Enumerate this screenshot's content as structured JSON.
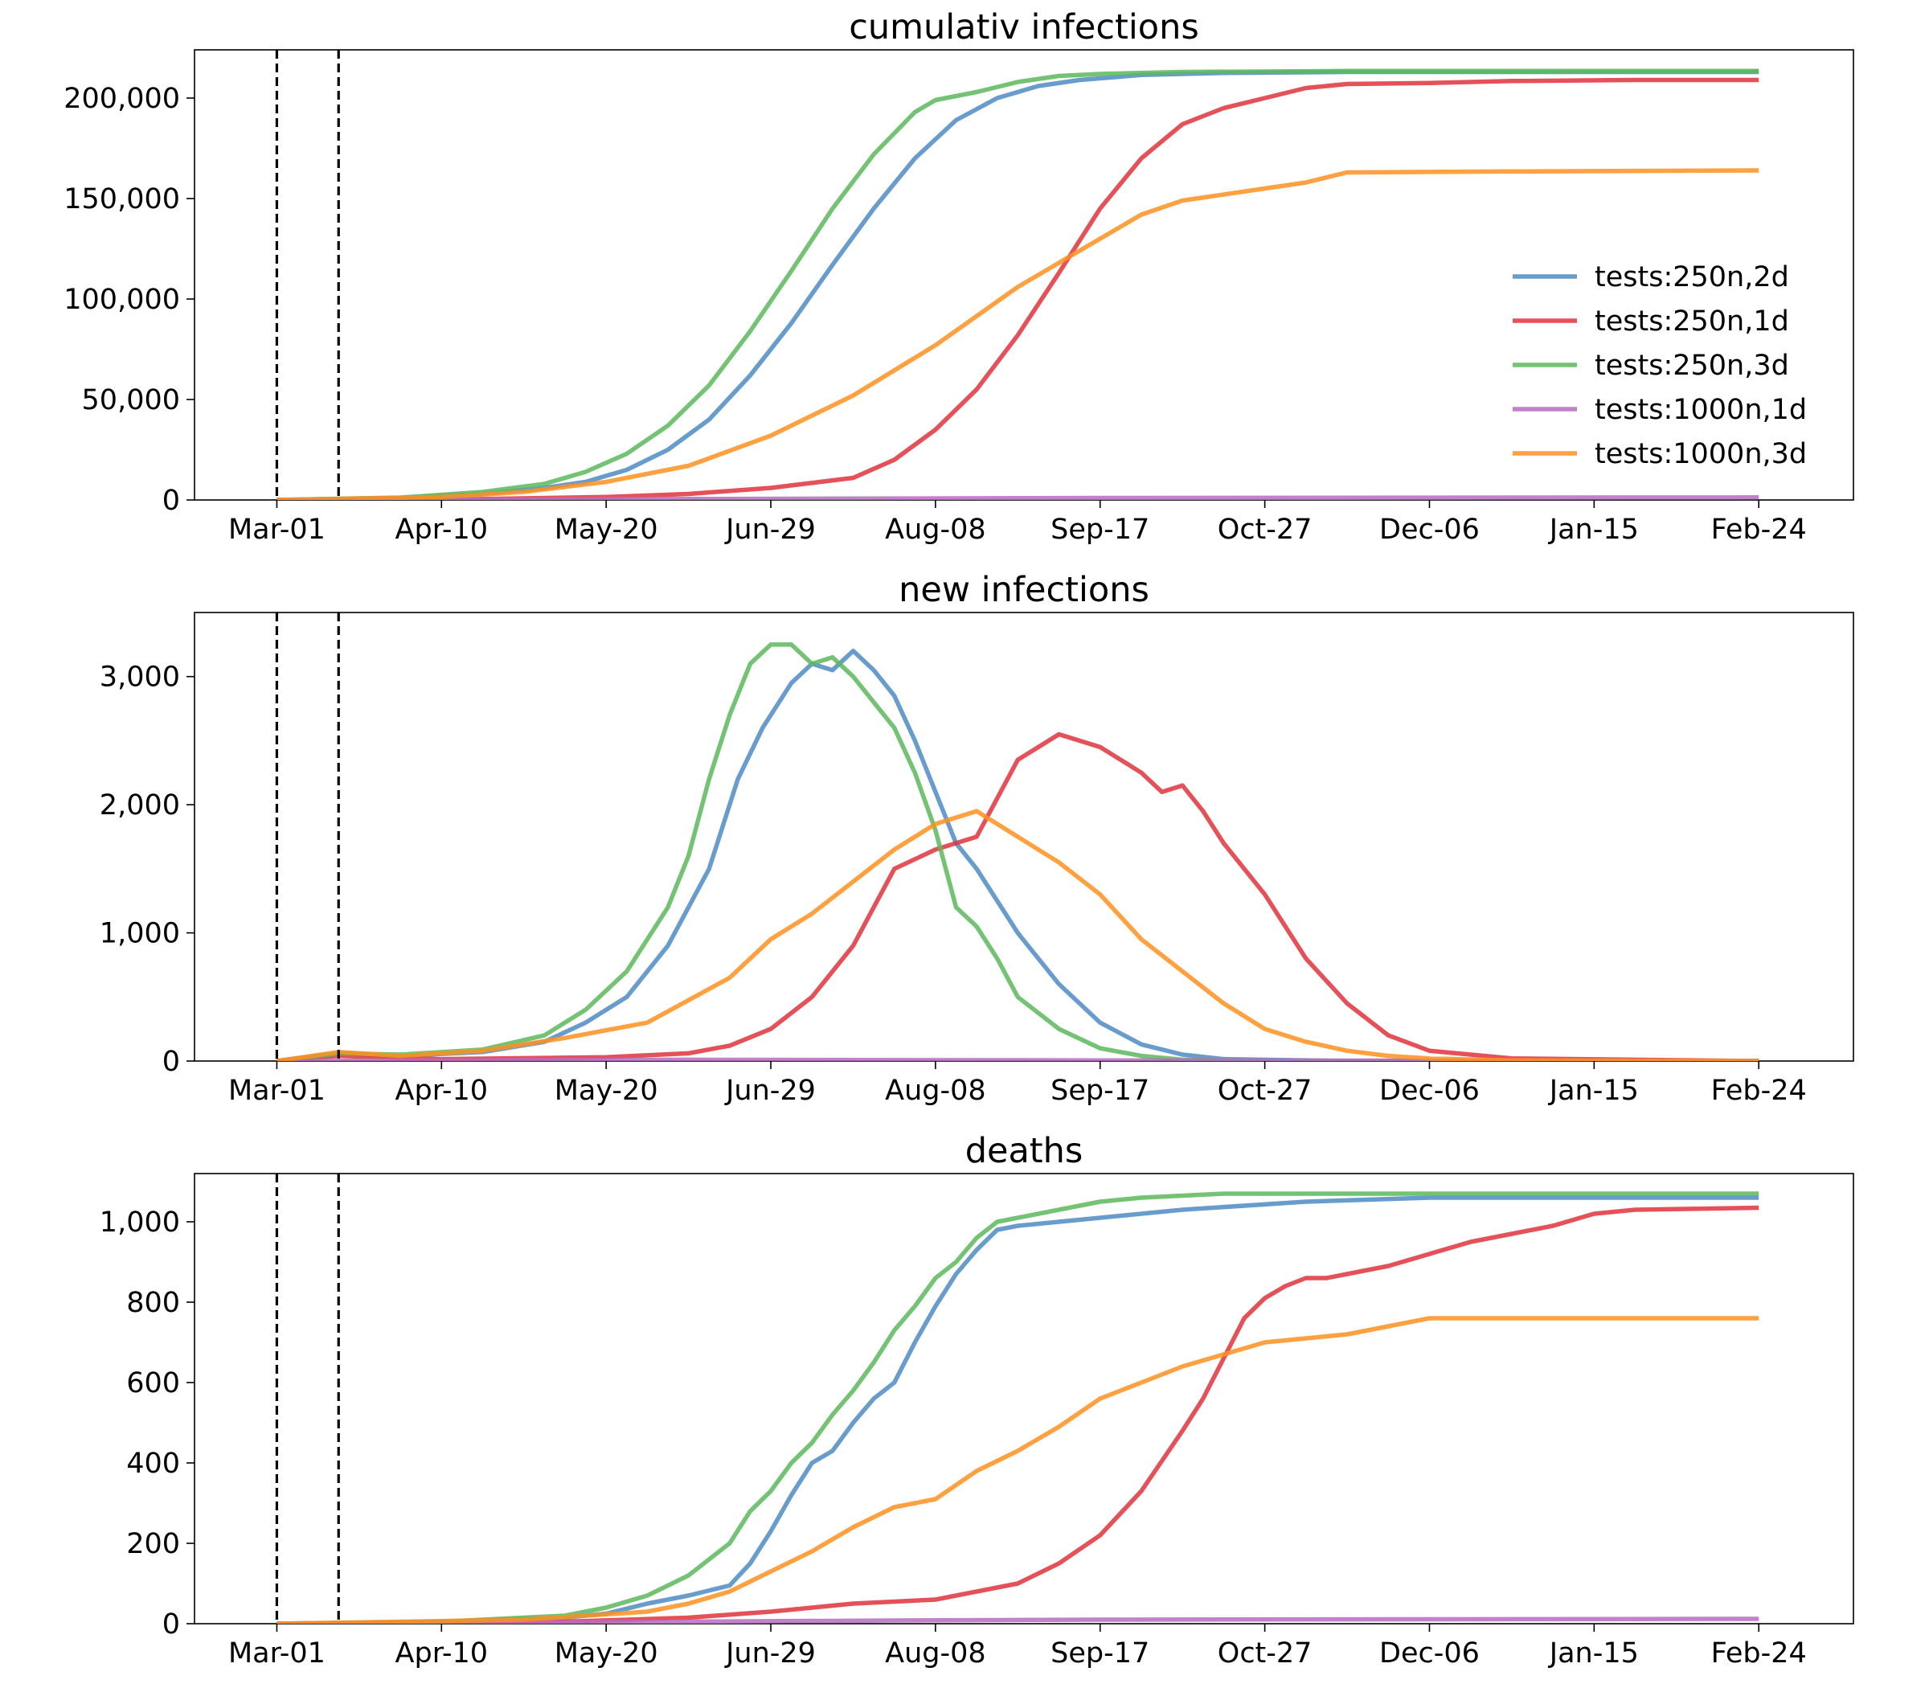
{
  "chart_data": [
    {
      "type": "line",
      "title": "cumulativ infections",
      "xlabel": "",
      "ylabel": "",
      "x_ticks": [
        "Mar-01",
        "Apr-10",
        "May-20",
        "Jun-29",
        "Aug-08",
        "Sep-17",
        "Oct-27",
        "Dec-06",
        "Jan-15",
        "Feb-24"
      ],
      "x_range": [
        "Feb-12",
        "Mar-01"
      ],
      "y_ticks": [
        "0",
        "50,000",
        "100,000",
        "150,000",
        "200,000"
      ],
      "ylim": [
        0,
        224000
      ],
      "vlines": [
        0,
        15
      ],
      "legend_position": "right",
      "grid": false,
      "series": [
        {
          "name": "tests:250n,2d",
          "color": "#4e8bc4",
          "x": [
            0,
            30,
            50,
            65,
            75,
            85,
            95,
            105,
            115,
            125,
            135,
            145,
            155,
            165,
            175,
            185,
            195,
            210,
            230,
            260,
            300,
            360
          ],
          "y": [
            0,
            1000,
            3000,
            6000,
            9000,
            15000,
            25000,
            40000,
            62000,
            88000,
            117000,
            145000,
            170000,
            189000,
            200000,
            206000,
            209000,
            211500,
            212500,
            213000,
            213000,
            213000
          ]
        },
        {
          "name": "tests:250n,1d",
          "color": "#e0333c",
          "x": [
            0,
            50,
            80,
            100,
            120,
            140,
            150,
            160,
            170,
            180,
            190,
            200,
            210,
            220,
            230,
            240,
            250,
            260,
            280,
            300,
            330,
            360
          ],
          "y": [
            0,
            500,
            1500,
            3000,
            6000,
            11000,
            20000,
            35000,
            55000,
            82000,
            113000,
            145000,
            170000,
            187000,
            195000,
            200000,
            205000,
            207000,
            207500,
            208500,
            209000,
            209000
          ],
          "x_label_note": ""
        },
        {
          "name": "tests:250n,3d",
          "color": "#5cb85c",
          "x": [
            0,
            30,
            50,
            65,
            75,
            85,
            95,
            105,
            115,
            125,
            135,
            145,
            155,
            160,
            170,
            180,
            190,
            200,
            220,
            260,
            300,
            360
          ],
          "y": [
            0,
            1200,
            4000,
            8000,
            14000,
            23000,
            37000,
            57000,
            84000,
            114000,
            145000,
            172000,
            193000,
            199000,
            203000,
            208000,
            211000,
            212000,
            213000,
            213500,
            213500,
            213500
          ]
        },
        {
          "name": "tests:1000n,1d",
          "color": "#b66cbf",
          "x": [
            0,
            100,
            200,
            300,
            360
          ],
          "y": [
            0,
            500,
            1000,
            1200,
            1300
          ]
        },
        {
          "name": "tests:1000n,3d",
          "color": "#ff9020",
          "x": [
            0,
            40,
            60,
            80,
            100,
            120,
            140,
            160,
            180,
            200,
            210,
            220,
            240,
            250,
            260,
            300,
            360
          ],
          "y": [
            0,
            1500,
            4000,
            9000,
            17000,
            32000,
            52000,
            77000,
            106000,
            130000,
            142000,
            149000,
            155000,
            158000,
            163000,
            163500,
            164000
          ]
        }
      ]
    },
    {
      "type": "line",
      "title": "new infections",
      "xlabel": "",
      "ylabel": "",
      "x_ticks": [
        "Mar-01",
        "Apr-10",
        "May-20",
        "Jun-29",
        "Aug-08",
        "Sep-17",
        "Oct-27",
        "Dec-06",
        "Jan-15",
        "Feb-24"
      ],
      "y_ticks": [
        "0",
        "1,000",
        "2,000",
        "3,000"
      ],
      "ylim": [
        0,
        3500
      ],
      "vlines": [
        0,
        15
      ],
      "grid": false,
      "series": [
        {
          "name": "tests:250n,2d",
          "color": "#4e8bc4",
          "x": [
            0,
            15,
            30,
            50,
            65,
            75,
            85,
            95,
            105,
            112,
            118,
            125,
            130,
            135,
            140,
            145,
            150,
            155,
            160,
            165,
            170,
            175,
            180,
            190,
            200,
            210,
            220,
            230,
            260,
            360
          ],
          "y": [
            0,
            60,
            40,
            70,
            150,
            300,
            500,
            900,
            1500,
            2200,
            2600,
            2950,
            3100,
            3050,
            3200,
            3050,
            2850,
            2500,
            2100,
            1700,
            1500,
            1250,
            1000,
            600,
            300,
            130,
            50,
            15,
            0,
            0
          ]
        },
        {
          "name": "tests:250n,1d",
          "color": "#e0333c",
          "x": [
            0,
            15,
            40,
            80,
            100,
            110,
            120,
            130,
            140,
            150,
            160,
            170,
            180,
            190,
            200,
            205,
            210,
            215,
            220,
            225,
            230,
            240,
            250,
            260,
            270,
            280,
            300,
            360
          ],
          "y": [
            0,
            40,
            15,
            30,
            60,
            120,
            250,
            500,
            900,
            1500,
            1650,
            1750,
            2350,
            2550,
            2450,
            2350,
            2250,
            2100,
            2150,
            1950,
            1700,
            1300,
            800,
            450,
            200,
            80,
            20,
            0
          ]
        },
        {
          "name": "tests:250n,3d",
          "color": "#5cb85c",
          "x": [
            0,
            15,
            30,
            50,
            65,
            75,
            85,
            95,
            100,
            105,
            110,
            115,
            120,
            125,
            130,
            135,
            140,
            145,
            150,
            155,
            160,
            165,
            170,
            175,
            180,
            190,
            200,
            210,
            220,
            240,
            360
          ],
          "y": [
            0,
            60,
            50,
            90,
            200,
            400,
            700,
            1200,
            1600,
            2200,
            2700,
            3100,
            3250,
            3250,
            3100,
            3150,
            3000,
            2800,
            2600,
            2250,
            1800,
            1200,
            1050,
            800,
            500,
            250,
            100,
            40,
            10,
            0,
            0
          ]
        },
        {
          "name": "tests:1000n,1d",
          "color": "#b66cbf",
          "x": [
            0,
            100,
            200,
            360
          ],
          "y": [
            0,
            10,
            5,
            0
          ]
        },
        {
          "name": "tests:1000n,3d",
          "color": "#ff9020",
          "x": [
            0,
            15,
            30,
            50,
            70,
            90,
            110,
            120,
            130,
            140,
            150,
            155,
            160,
            165,
            170,
            175,
            180,
            190,
            200,
            210,
            220,
            230,
            240,
            250,
            260,
            270,
            280,
            300,
            360
          ],
          "y": [
            0,
            70,
            40,
            80,
            180,
            300,
            650,
            950,
            1150,
            1400,
            1650,
            1750,
            1850,
            1900,
            1950,
            1850,
            1750,
            1550,
            1300,
            950,
            700,
            450,
            250,
            150,
            80,
            40,
            20,
            5,
            0
          ]
        }
      ]
    },
    {
      "type": "line",
      "title": "deaths",
      "xlabel": "",
      "ylabel": "",
      "x_ticks": [
        "Mar-01",
        "Apr-10",
        "May-20",
        "Jun-29",
        "Aug-08",
        "Sep-17",
        "Oct-27",
        "Dec-06",
        "Jan-15",
        "Feb-24"
      ],
      "y_ticks": [
        "0",
        "200",
        "400",
        "600",
        "800",
        "1,000"
      ],
      "ylim": [
        0,
        1120
      ],
      "vlines": [
        0,
        15
      ],
      "grid": false,
      "series": [
        {
          "name": "tests:250n,2d",
          "color": "#4e8bc4",
          "x": [
            0,
            40,
            70,
            80,
            90,
            100,
            110,
            115,
            120,
            125,
            130,
            135,
            140,
            145,
            150,
            155,
            160,
            165,
            170,
            175,
            180,
            190,
            200,
            220,
            250,
            280,
            300,
            360
          ],
          "y": [
            0,
            5,
            15,
            25,
            50,
            70,
            95,
            150,
            230,
            320,
            400,
            430,
            500,
            560,
            600,
            700,
            790,
            870,
            930,
            980,
            990,
            1000,
            1010,
            1030,
            1050,
            1060,
            1060,
            1060
          ]
        },
        {
          "name": "tests:250n,1d",
          "color": "#e0333c",
          "x": [
            0,
            70,
            100,
            120,
            140,
            160,
            170,
            180,
            190,
            200,
            210,
            220,
            225,
            230,
            235,
            240,
            245,
            250,
            255,
            260,
            270,
            280,
            290,
            300,
            310,
            320,
            330,
            360
          ],
          "y": [
            0,
            5,
            15,
            30,
            50,
            60,
            80,
            100,
            150,
            220,
            330,
            480,
            560,
            660,
            760,
            810,
            840,
            860,
            860,
            870,
            890,
            920,
            950,
            970,
            990,
            1020,
            1030,
            1035
          ]
        },
        {
          "name": "tests:250n,3d",
          "color": "#5cb85c",
          "x": [
            0,
            40,
            70,
            80,
            90,
            100,
            110,
            115,
            120,
            125,
            130,
            135,
            140,
            145,
            150,
            155,
            160,
            165,
            170,
            175,
            180,
            190,
            200,
            210,
            230,
            260,
            360
          ],
          "y": [
            0,
            5,
            20,
            40,
            70,
            120,
            200,
            280,
            330,
            400,
            450,
            520,
            580,
            650,
            730,
            790,
            860,
            900,
            960,
            1000,
            1010,
            1030,
            1050,
            1060,
            1070,
            1070,
            1070
          ]
        },
        {
          "name": "tests:1000n,1d",
          "color": "#b66cbf",
          "x": [
            0,
            100,
            150,
            200,
            360
          ],
          "y": [
            0,
            5,
            8,
            10,
            12
          ]
        },
        {
          "name": "tests:1000n,3d",
          "color": "#ff9020",
          "x": [
            0,
            60,
            90,
            100,
            110,
            120,
            130,
            140,
            150,
            160,
            170,
            180,
            190,
            200,
            210,
            220,
            230,
            240,
            250,
            260,
            270,
            280,
            300,
            360
          ],
          "y": [
            0,
            10,
            30,
            50,
            80,
            130,
            180,
            240,
            290,
            310,
            380,
            430,
            490,
            560,
            600,
            640,
            670,
            700,
            710,
            720,
            740,
            760,
            760,
            760
          ]
        }
      ]
    }
  ]
}
